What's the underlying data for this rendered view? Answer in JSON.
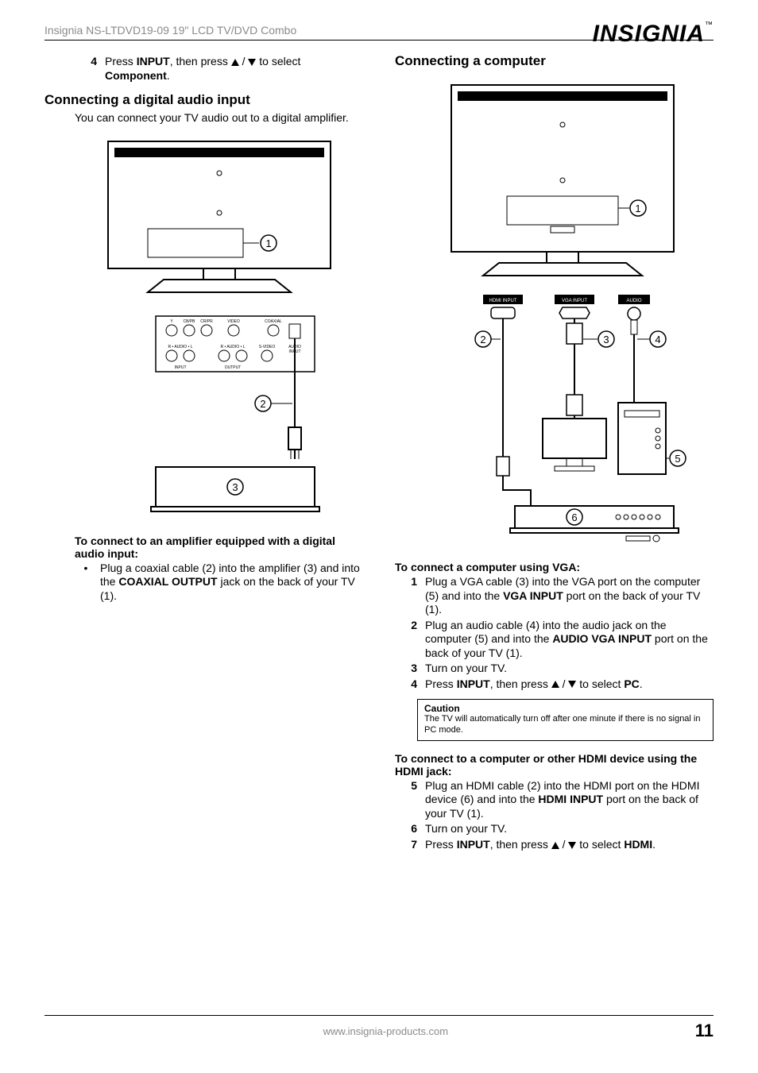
{
  "header": {
    "product_line": "Insignia NS-LTDVD19-09 19\" LCD TV/DVD Combo",
    "brand": "INSIGNIA"
  },
  "footer": {
    "url": "www.insignia-products.com",
    "page_number": "11"
  },
  "left": {
    "pre_step": {
      "num": "4",
      "body_parts": [
        "Press ",
        "INPUT",
        ", then press ",
        "ARROWS",
        " to select ",
        "Component",
        "."
      ]
    },
    "section_title": "Connecting a digital audio input",
    "intro": "You can connect your TV audio out to a digital amplifier.",
    "figure": {
      "callouts": [
        "1",
        "2",
        "3"
      ],
      "port_labels_top": [
        "Y",
        "CB/PB",
        "CR/PR",
        "VIDEO",
        "COAXIAL"
      ],
      "port_labels_bottom": [
        "R",
        "AUDIO",
        "L",
        "R",
        "AUDIO",
        "L",
        "S-VIDEO"
      ],
      "group_labels": [
        "INPUT",
        "OUTPUT",
        "AUDIO INPUT"
      ]
    },
    "procedure_title": "To connect to an amplifier equipped with a digital audio input:",
    "bullet": {
      "parts": [
        "Plug a coaxial cable (2) into the amplifier (3) and into the ",
        "COAXIAL OUTPUT",
        " jack on the back of your TV (1)."
      ]
    }
  },
  "right": {
    "section_title": "Connecting a computer",
    "figure": {
      "callouts": [
        "1",
        "2",
        "3",
        "4",
        "5",
        "6"
      ],
      "port_labels": [
        "HDMI INPUT",
        "VGA INPUT",
        "AUDIO"
      ]
    },
    "proc1_title": "To connect a computer using VGA:",
    "proc1_steps": [
      {
        "num": "1",
        "parts": [
          "Plug a VGA cable (3) into the VGA port on the computer (5) and into the ",
          "VGA INPUT",
          " port on the back of your TV (1)."
        ]
      },
      {
        "num": "2",
        "parts": [
          "Plug an audio cable (4) into the audio jack on the computer (5) and into the ",
          "AUDIO VGA INPUT",
          " port on the back of your TV (1)."
        ]
      },
      {
        "num": "3",
        "parts": [
          "Turn on your TV."
        ]
      },
      {
        "num": "4",
        "parts": [
          "Press ",
          "INPUT",
          ", then press ",
          "ARROWS",
          " to select ",
          "PC",
          "."
        ]
      }
    ],
    "caution": {
      "title": "Caution",
      "body": "The TV will automatically turn off after one minute if there is no signal in PC mode."
    },
    "proc2_title": "To connect to a computer or other HDMI device using the HDMI jack:",
    "proc2_steps": [
      {
        "num": "5",
        "parts": [
          "Plug an HDMI cable (2) into the HDMI port on the HDMI device (6) and into the ",
          "HDMI INPUT",
          " port on the back of your TV (1)."
        ]
      },
      {
        "num": "6",
        "parts": [
          "Turn on your TV."
        ]
      },
      {
        "num": "7",
        "parts": [
          "Press ",
          "INPUT",
          ", then press ",
          "ARROWS",
          " to select ",
          "HDMI",
          "."
        ]
      }
    ]
  }
}
